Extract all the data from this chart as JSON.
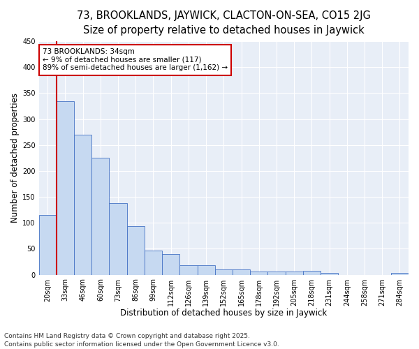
{
  "title_line1": "73, BROOKLANDS, JAYWICK, CLACTON-ON-SEA, CO15 2JG",
  "title_line2": "Size of property relative to detached houses in Jaywick",
  "xlabel": "Distribution of detached houses by size in Jaywick",
  "ylabel": "Number of detached properties",
  "categories": [
    "20sqm",
    "33sqm",
    "46sqm",
    "60sqm",
    "73sqm",
    "86sqm",
    "99sqm",
    "112sqm",
    "126sqm",
    "139sqm",
    "152sqm",
    "165sqm",
    "178sqm",
    "192sqm",
    "205sqm",
    "218sqm",
    "231sqm",
    "244sqm",
    "258sqm",
    "271sqm",
    "284sqm"
  ],
  "values": [
    115,
    335,
    270,
    225,
    138,
    93,
    46,
    40,
    18,
    18,
    10,
    10,
    6,
    6,
    6,
    7,
    3,
    0,
    0,
    0,
    4
  ],
  "bar_color": "#c6d9f1",
  "bar_edge_color": "#4472c4",
  "red_line_x": 0.575,
  "highlight_line_color": "#cc0000",
  "annotation_text": "73 BROOKLANDS: 34sqm\n← 9% of detached houses are smaller (117)\n89% of semi-detached houses are larger (1,162) →",
  "annotation_box_color": "#ffffff",
  "annotation_box_edge_color": "#cc0000",
  "ylim": [
    0,
    450
  ],
  "yticks": [
    0,
    50,
    100,
    150,
    200,
    250,
    300,
    350,
    400,
    450
  ],
  "background_color": "#e8eef7",
  "grid_color": "#ffffff",
  "footer_line1": "Contains HM Land Registry data © Crown copyright and database right 2025.",
  "footer_line2": "Contains public sector information licensed under the Open Government Licence v3.0.",
  "title_fontsize": 10.5,
  "subtitle_fontsize": 9.5,
  "tick_fontsize": 7,
  "xlabel_fontsize": 8.5,
  "ylabel_fontsize": 8.5,
  "annotation_fontsize": 7.5,
  "footer_fontsize": 6.5
}
